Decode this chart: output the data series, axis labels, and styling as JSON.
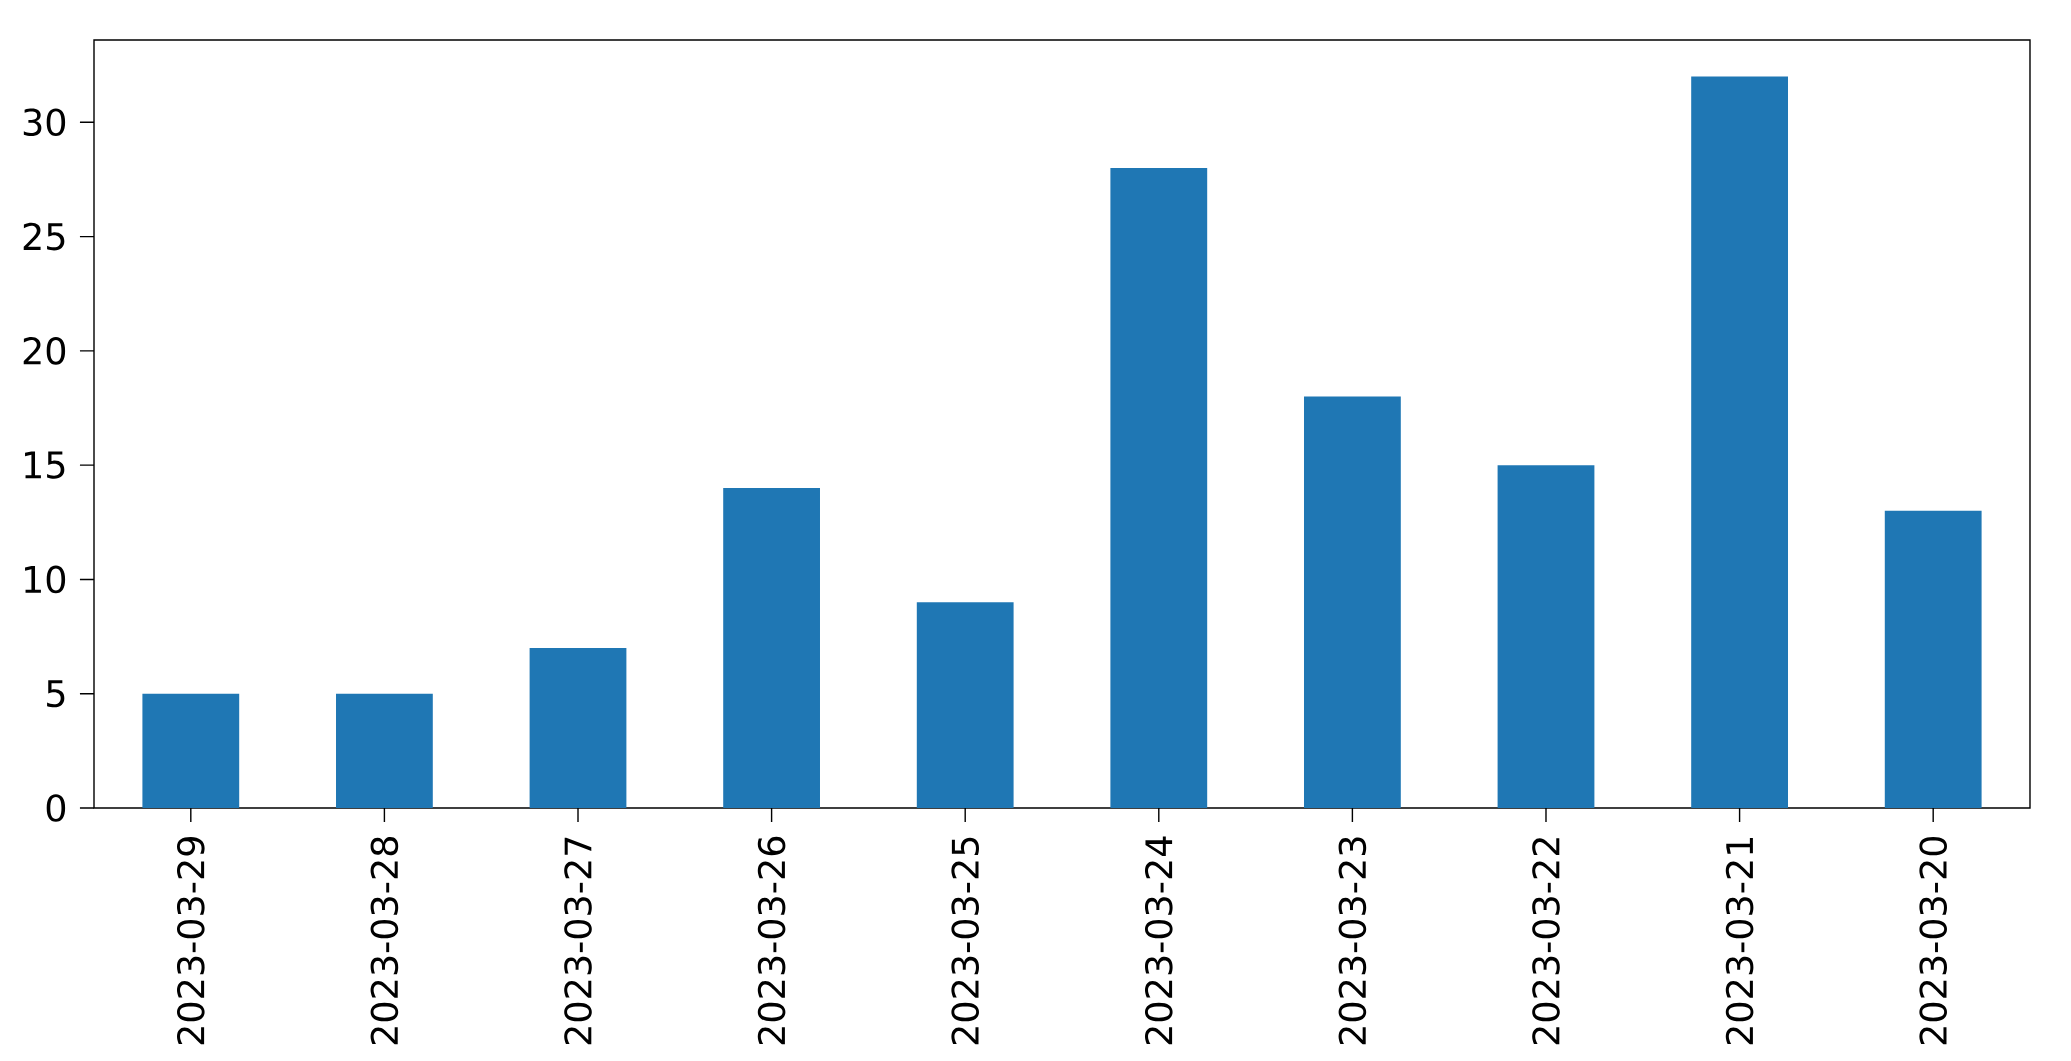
{
  "chart_data": {
    "type": "bar",
    "categories": [
      "2023-03-29",
      "2023-03-28",
      "2023-03-27",
      "2023-03-26",
      "2023-03-25",
      "2023-03-24",
      "2023-03-23",
      "2023-03-22",
      "2023-03-21",
      "2023-03-20"
    ],
    "values": [
      5,
      5,
      7,
      14,
      9,
      28,
      18,
      15,
      32,
      13
    ],
    "color": "#1f77b4",
    "ylim": [
      0,
      33.6
    ],
    "yticks": [
      0,
      5,
      10,
      15,
      20,
      25,
      30
    ],
    "grid": false
  }
}
